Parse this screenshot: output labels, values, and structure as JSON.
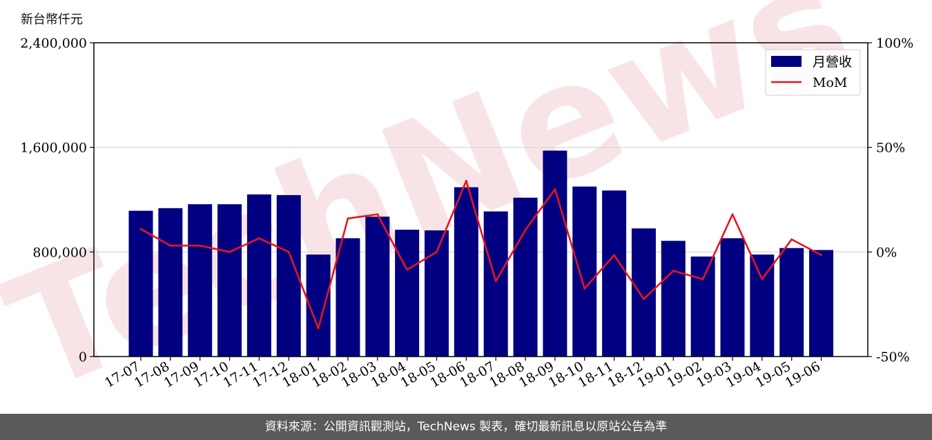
{
  "unit_label": "新台幣仟元",
  "footer_text": "資料來源：公開資訊觀測站，TechNews 製表，確切最新訊息以原站公告為準",
  "watermark_text": "TechNews",
  "colors": {
    "bar": "#000080",
    "line": "#e8141c",
    "grid": "#d9d9d9",
    "watermark": "#f3cfd2",
    "footer_bg": "#5a5a5a"
  },
  "chart_data": {
    "type": "bar",
    "categories": [
      "17-07",
      "17-08",
      "17-09",
      "17-10",
      "17-11",
      "17-12",
      "18-01",
      "18-02",
      "18-03",
      "18-04",
      "18-05",
      "18-06",
      "18-07",
      "18-08",
      "18-09",
      "18-10",
      "18-11",
      "18-12",
      "19-01",
      "19-02",
      "19-03",
      "19-04",
      "19-05",
      "19-06"
    ],
    "series": [
      {
        "name": "月營收",
        "type": "bar",
        "axis": "left",
        "values": [
          1115000,
          1135000,
          1165000,
          1165000,
          1240000,
          1235000,
          780000,
          905000,
          1070000,
          970000,
          965000,
          1295000,
          1110000,
          1215000,
          1575000,
          1300000,
          1270000,
          980000,
          885000,
          765000,
          905000,
          780000,
          830000,
          815000
        ]
      },
      {
        "name": "MoM",
        "type": "line",
        "axis": "right",
        "values": [
          11,
          3,
          3,
          0,
          6.5,
          0,
          -36.5,
          16,
          18,
          -8.5,
          0,
          34,
          -14,
          10.5,
          30,
          -17.5,
          -1.5,
          -22.5,
          -9,
          -13,
          18,
          -13,
          6,
          -1.5
        ]
      }
    ],
    "y_left": {
      "ylim": [
        0,
        2400000
      ],
      "ticks": [
        "0",
        "800,000",
        "1,600,000",
        "2,400,000"
      ]
    },
    "y_right": {
      "ylim": [
        -50,
        100
      ],
      "ticks": [
        "-50%",
        "0%",
        "50%",
        "100%"
      ]
    },
    "grid": true,
    "legend_position": "top-right"
  }
}
